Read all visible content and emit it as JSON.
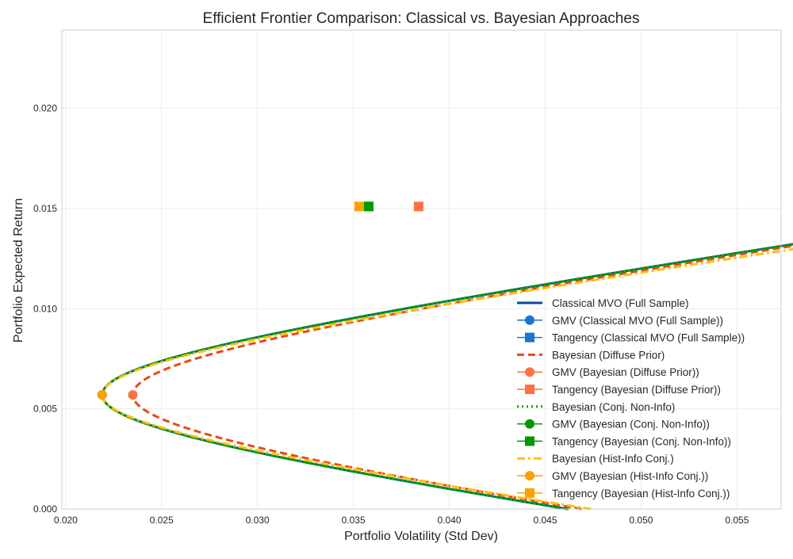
{
  "chart_data": {
    "type": "line",
    "title": "Efficient Frontier Comparison: Classical vs. Bayesian Approaches",
    "xlabel": "Portfolio Volatility (Std Dev)",
    "ylabel": "Portfolio Expected Return",
    "xlim": [
      0.0198,
      0.0573
    ],
    "ylim": [
      0.0,
      0.0239
    ],
    "xticks": [
      "0.020",
      "0.025",
      "0.030",
      "0.035",
      "0.040",
      "0.045",
      "0.050",
      "0.055"
    ],
    "yticks": [
      "0.000",
      "0.005",
      "0.010",
      "0.015",
      "0.020"
    ],
    "grid": true,
    "legend_position": "lower-right",
    "series": [
      {
        "name": "Classical MVO (Full Sample)",
        "style": "solid",
        "color": "#0d47a1",
        "gmv": [
          0.0219,
          0.0057
        ],
        "a": 0.0219,
        "b": 0.00307,
        "ymin": 0.0,
        "ymax": 0.0208,
        "tangency": [
          0.0358,
          0.0151
        ]
      },
      {
        "name": "Bayesian (Diffuse Prior)",
        "style": "dashed",
        "color": "#e64a19",
        "gmv": [
          0.0235,
          0.0057
        ],
        "a": 0.0235,
        "b": 0.0033,
        "ymin": 0.0,
        "ymax": 0.0208,
        "tangency": [
          0.0384,
          0.0151
        ]
      },
      {
        "name": "Bayesian (Conj. Non-Info)",
        "style": "dotted",
        "color": "#00a000",
        "gmv": [
          0.0219,
          0.0057
        ],
        "a": 0.0219,
        "b": 0.00307,
        "ymin": 0.0,
        "ymax": 0.0208,
        "tangency": [
          0.0358,
          0.0151
        ]
      },
      {
        "name": "Bayesian (Hist-Info Conj.)",
        "style": "dashdot",
        "color": "#ffc107",
        "gmv": [
          0.0219,
          0.0057
        ],
        "a": 0.0219,
        "b": 0.00297,
        "ymin": 0.0,
        "ymax": 0.0226,
        "tangency": [
          0.0353,
          0.0151
        ]
      }
    ],
    "markers": [
      {
        "label": "GMV (Classical MVO (Full Sample))",
        "shape": "circle",
        "color": "#1976d2",
        "x": 0.0219,
        "y": 0.0057
      },
      {
        "label": "Tangency (Classical MVO (Full Sample))",
        "shape": "square",
        "color": "#1976d2",
        "x": 0.0358,
        "y": 0.0151
      },
      {
        "label": "GMV (Bayesian (Diffuse Prior))",
        "shape": "circle",
        "color": "#ff7043",
        "x": 0.0235,
        "y": 0.0057
      },
      {
        "label": "Tangency (Bayesian (Diffuse Prior))",
        "shape": "square",
        "color": "#ff7043",
        "x": 0.0384,
        "y": 0.0151
      },
      {
        "label": "GMV (Bayesian (Conj. Non-Info))",
        "shape": "circle",
        "color": "#009900",
        "x": 0.0219,
        "y": 0.0057
      },
      {
        "label": "Tangency (Bayesian (Conj. Non-Info))",
        "shape": "square",
        "color": "#009900",
        "x": 0.0358,
        "y": 0.0151
      },
      {
        "label": "GMV (Bayesian (Hist-Info Conj.))",
        "shape": "circle",
        "color": "#ffa000",
        "x": 0.0219,
        "y": 0.0057
      },
      {
        "label": "Tangency (Bayesian (Hist-Info Conj.))",
        "shape": "square",
        "color": "#ffa000",
        "x": 0.0353,
        "y": 0.0151
      }
    ],
    "legend": [
      {
        "label": "Classical MVO (Full Sample)",
        "kind": "line",
        "style": "solid",
        "color": "#0d47a1"
      },
      {
        "label": "GMV (Classical MVO (Full Sample))",
        "kind": "marker",
        "shape": "circle",
        "color": "#1976d2"
      },
      {
        "label": "Tangency (Classical MVO (Full Sample))",
        "kind": "marker",
        "shape": "square",
        "color": "#1976d2"
      },
      {
        "label": "Bayesian (Diffuse Prior)",
        "kind": "line",
        "style": "dashed",
        "color": "#e64a19"
      },
      {
        "label": "GMV (Bayesian (Diffuse Prior))",
        "kind": "marker",
        "shape": "circle",
        "color": "#ff7043"
      },
      {
        "label": "Tangency (Bayesian (Diffuse Prior))",
        "kind": "marker",
        "shape": "square",
        "color": "#ff7043"
      },
      {
        "label": "Bayesian (Conj. Non-Info)",
        "kind": "line",
        "style": "dotted",
        "color": "#00a000"
      },
      {
        "label": "GMV (Bayesian (Conj. Non-Info))",
        "kind": "marker",
        "shape": "circle",
        "color": "#009900"
      },
      {
        "label": "Tangency (Bayesian (Conj. Non-Info))",
        "kind": "marker",
        "shape": "square",
        "color": "#009900"
      },
      {
        "label": "Bayesian (Hist-Info Conj.)",
        "kind": "line",
        "style": "dashdot",
        "color": "#ffc107"
      },
      {
        "label": "GMV (Bayesian (Hist-Info Conj.))",
        "kind": "marker",
        "shape": "circle",
        "color": "#ffa000"
      },
      {
        "label": "Tangency (Bayesian (Hist-Info Conj.))",
        "kind": "marker",
        "shape": "square",
        "color": "#ffa000"
      }
    ]
  }
}
